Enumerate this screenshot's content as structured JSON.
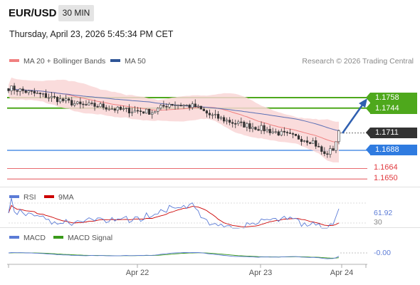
{
  "header": {
    "symbol": "EUR/USD",
    "timeframe": "30 MIN",
    "datetime": "Thursday, April 23, 2026 5:45:34 PM CET"
  },
  "main_chart": {
    "legend": [
      {
        "label": "MA 20 + Bollinger Bands",
        "color": "#f08080"
      },
      {
        "label": "MA 50",
        "color": "#2f5597"
      }
    ],
    "copyright": "Research © 2026 Trading Central",
    "levels": {
      "resistance_1": "1.1758",
      "resistance_2": "1.1744",
      "last_price": "1.1711",
      "pivot": "1.1688",
      "support_1": "1.1664",
      "support_2": "1.1650"
    },
    "colors": {
      "resistance": "#4ea81c",
      "pivot": "#2f7be0",
      "support": "#e0393e",
      "last": "#333333",
      "candle": "#333333",
      "bollinger_fill": "#f9d6d6",
      "ma20": "#f08080",
      "ma50": "#5b6fb5",
      "arrow": "#2f5fb0"
    }
  },
  "rsi_panel": {
    "legend": [
      {
        "label": "RSI",
        "color": "#5b7bd6"
      },
      {
        "label": "9MA",
        "color": "#cc0000"
      }
    ],
    "value": "61.92",
    "level_label": "30"
  },
  "macd_panel": {
    "legend": [
      {
        "label": "MACD",
        "color": "#5b7bd6"
      },
      {
        "label": "MACD Signal",
        "color": "#3a9a1a"
      }
    ],
    "value": "-0.00"
  },
  "x_axis": {
    "labels": [
      "Apr 22",
      "Apr 23",
      "Apr 24"
    ]
  }
}
